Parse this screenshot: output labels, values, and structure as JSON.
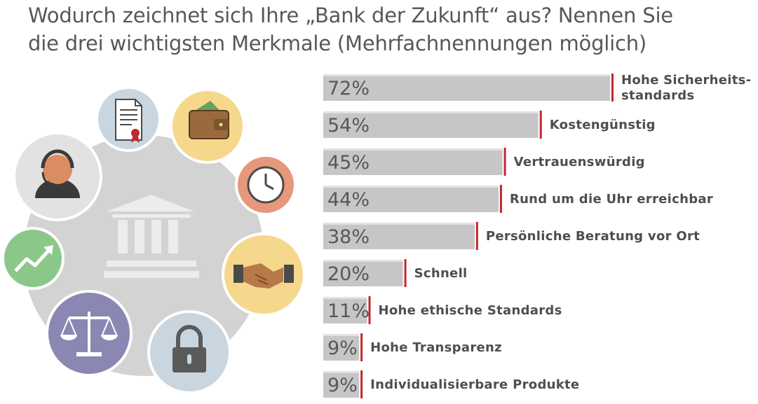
{
  "title_lines": [
    "Wodurch zeichnet sich Ihre „Bank der Zukunft“ aus? Nennen Sie",
    "die drei wichtigsten Merkmale (Mehrfachnennungen möglich)"
  ],
  "colors": {
    "bar": "#c6c6c6",
    "marker": "#c0282d",
    "text": "#575757"
  },
  "chart_data": {
    "type": "bar",
    "orientation": "horizontal",
    "title": "Wodurch zeichnet sich Ihre „Bank der Zukunft“ aus? Nennen Sie die drei wichtigsten Merkmale (Mehrfachnennungen möglich)",
    "unit": "%",
    "xlim": [
      0,
      100
    ],
    "grid": false,
    "legend": "none",
    "categories": [
      [
        "Hohe Sicherheits-",
        "standards"
      ],
      [
        "Kostengünstig"
      ],
      [
        "Vertrauenswürdig"
      ],
      [
        "Rund um die Uhr erreichbar"
      ],
      [
        "Persönliche Beratung vor Ort"
      ],
      [
        "Schnell"
      ],
      [
        "Hohe ethische Standards"
      ],
      [
        "Hohe Transparenz"
      ],
      [
        "Individualisierbare Produkte"
      ]
    ],
    "values": [
      72,
      54,
      45,
      44,
      38,
      20,
      11,
      9,
      9
    ],
    "value_labels": [
      "72%",
      "54%",
      "45%",
      "44%",
      "38%",
      "20%",
      "11%",
      "9%",
      "9%"
    ]
  },
  "illustration": {
    "icons": [
      "document-icon",
      "wallet-icon",
      "clock-icon",
      "handshake-icon",
      "padlock-icon",
      "scales-icon",
      "growth-chart-icon",
      "support-agent-icon",
      "bank-building-icon"
    ]
  }
}
